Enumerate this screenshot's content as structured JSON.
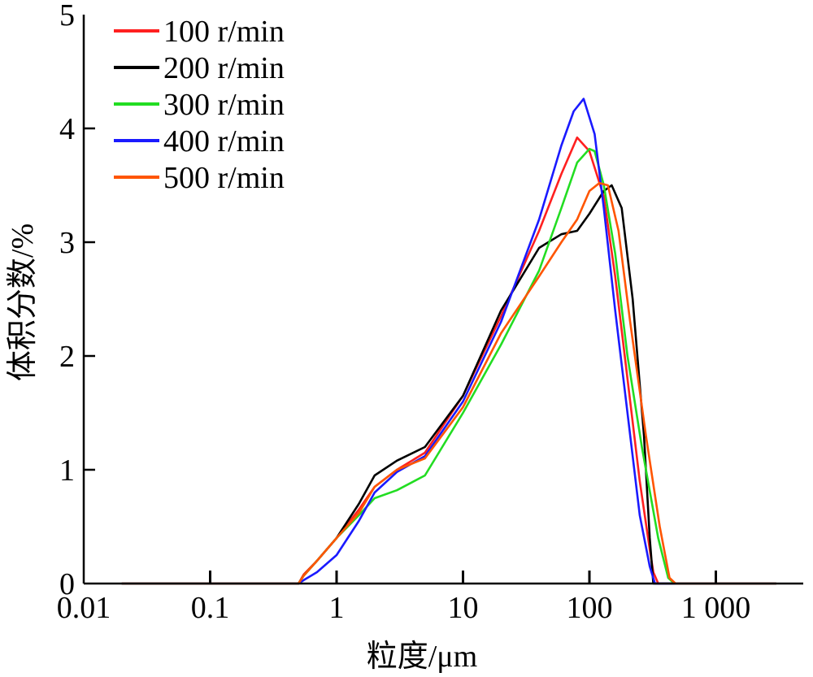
{
  "chart_data": {
    "type": "line",
    "title": "",
    "xlabel": "粒度/μm",
    "ylabel": "体积分数/%",
    "x_scale": "log",
    "xlim": [
      0.01,
      5000
    ],
    "ylim": [
      0,
      5
    ],
    "x_ticks": [
      0.01,
      0.1,
      1,
      10,
      100,
      1000
    ],
    "x_tick_labels": [
      "0.01",
      "0.1",
      "1",
      "10",
      "100",
      "1 000"
    ],
    "y_ticks": [
      0,
      1,
      2,
      3,
      4,
      5
    ],
    "y_tick_labels": [
      "0",
      "1",
      "2",
      "3",
      "4",
      "5"
    ],
    "grid": false,
    "legend_position": "top-left",
    "series": [
      {
        "name": "100 r/min",
        "color": "#ff2020",
        "x": [
          0.02,
          0.5,
          0.55,
          0.7,
          1,
          1.5,
          2,
          3,
          5,
          10,
          20,
          40,
          60,
          80,
          100,
          130,
          160,
          200,
          250,
          300,
          320,
          350,
          3000
        ],
        "y": [
          0,
          0,
          0.08,
          0.2,
          0.4,
          0.65,
          0.85,
          1.0,
          1.15,
          1.65,
          2.35,
          3.1,
          3.6,
          3.92,
          3.8,
          3.4,
          2.7,
          1.8,
          0.9,
          0.3,
          0.1,
          0,
          0
        ]
      },
      {
        "name": "200 r/min",
        "color": "#000000",
        "x": [
          0.02,
          0.5,
          0.55,
          0.7,
          1,
          1.5,
          2,
          3,
          5,
          10,
          20,
          40,
          60,
          80,
          100,
          130,
          150,
          180,
          220,
          270,
          300,
          320,
          3000
        ],
        "y": [
          0,
          0,
          0.07,
          0.2,
          0.4,
          0.7,
          0.95,
          1.08,
          1.2,
          1.65,
          2.4,
          2.95,
          3.07,
          3.1,
          3.25,
          3.45,
          3.5,
          3.3,
          2.5,
          1.3,
          0.4,
          0,
          0
        ]
      },
      {
        "name": "300 r/min",
        "color": "#22dd22",
        "x": [
          0.02,
          0.5,
          0.55,
          0.7,
          1,
          1.5,
          2,
          3,
          5,
          10,
          20,
          40,
          60,
          80,
          100,
          110,
          130,
          160,
          200,
          260,
          350,
          420,
          470,
          3000
        ],
        "y": [
          0,
          0,
          0.07,
          0.2,
          0.4,
          0.6,
          0.75,
          0.82,
          0.95,
          1.5,
          2.1,
          2.75,
          3.3,
          3.7,
          3.82,
          3.8,
          3.5,
          2.9,
          2.0,
          1.2,
          0.4,
          0.05,
          0,
          0
        ]
      },
      {
        "name": "400 r/min",
        "color": "#1a1aff",
        "x": [
          0.02,
          0.5,
          0.55,
          0.7,
          1,
          1.5,
          2,
          3,
          5,
          10,
          20,
          40,
          60,
          75,
          90,
          110,
          130,
          160,
          200,
          250,
          300,
          330,
          3000
        ],
        "y": [
          0,
          0,
          0.03,
          0.1,
          0.25,
          0.55,
          0.8,
          0.98,
          1.12,
          1.6,
          2.3,
          3.2,
          3.85,
          4.15,
          4.26,
          3.95,
          3.3,
          2.4,
          1.5,
          0.6,
          0.15,
          0,
          0
        ]
      },
      {
        "name": "500 r/min",
        "color": "#ff5500",
        "x": [
          0.02,
          0.5,
          0.55,
          0.7,
          1,
          1.5,
          2,
          3,
          5,
          10,
          20,
          40,
          60,
          80,
          100,
          120,
          140,
          170,
          210,
          280,
          360,
          430,
          480,
          3000
        ],
        "y": [
          0,
          0,
          0.07,
          0.2,
          0.4,
          0.62,
          0.85,
          1.0,
          1.1,
          1.55,
          2.2,
          2.7,
          3.0,
          3.2,
          3.45,
          3.52,
          3.5,
          3.1,
          2.3,
          1.3,
          0.5,
          0.05,
          0,
          0
        ]
      }
    ]
  }
}
